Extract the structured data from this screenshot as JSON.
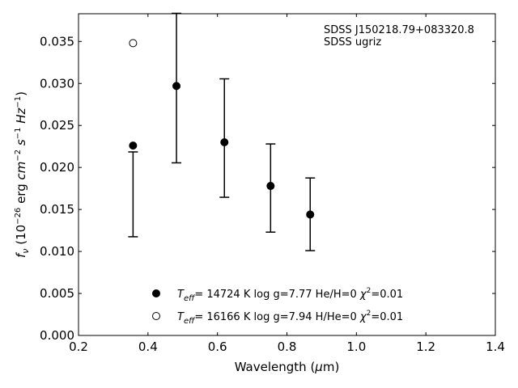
{
  "chart_data": {
    "type": "scatter",
    "xlabel": "Wavelength (μm)",
    "ylabel": "f_ν (10^-26 erg cm^-2 s^-1 Hz^-1)",
    "xlim": [
      0.2,
      1.4
    ],
    "ylim": [
      0.0,
      0.0383
    ],
    "xticks": [
      "0.2",
      "0.4",
      "0.6",
      "0.8",
      "1.0",
      "1.2",
      "1.4"
    ],
    "xtick_values": [
      0.2,
      0.4,
      0.6,
      0.8,
      1.0,
      1.2,
      1.4
    ],
    "yticks": [
      "0.000",
      "0.005",
      "0.010",
      "0.015",
      "0.020",
      "0.025",
      "0.030",
      "0.035"
    ],
    "ytick_values": [
      0.0,
      0.005,
      0.01,
      0.015,
      0.02,
      0.025,
      0.03,
      0.035
    ],
    "annotation": [
      "SDSS J150218.79+083320.8",
      "SDSS ugriz"
    ],
    "observed": {
      "name": "SDSS ugriz",
      "x": [
        0.3551,
        0.4686,
        0.6166,
        0.748,
        0.8932
      ],
      "x_plot": [
        0.357,
        0.482,
        0.62,
        0.753,
        0.867
      ],
      "y": [
        0.0168,
        0.0294,
        0.02475,
        0.01755,
        0.01445
      ],
      "yerr_low": [
        0.01175,
        0.02055,
        0.01645,
        0.0123,
        0.0101
      ],
      "yerr_high": [
        0.02185,
        0.03835,
        0.03055,
        0.0228,
        0.01875
      ]
    },
    "series": [
      {
        "name": "Teff= 14724 K  log g=7.77  He/H=0  χ²=0.01",
        "marker": "filled-circle",
        "x": [
          0.357,
          0.482,
          0.62,
          0.753,
          0.867
        ],
        "y": [
          0.0226,
          0.0297,
          0.023,
          0.0178,
          0.0144
        ]
      },
      {
        "name": "Teff= 16166 K  log g=7.94  H/He=0  χ²=0.01",
        "marker": "open-circle",
        "x": [
          0.357
        ],
        "y": [
          0.0348
        ]
      }
    ],
    "legend": [
      {
        "marker": "filled-circle",
        "teff": "14724 K",
        "logg": "log g=7.77",
        "comp": "He/H=0",
        "chi": "=0.01"
      },
      {
        "marker": "open-circle",
        "teff": "16166 K",
        "logg": "log g=7.94",
        "comp": "H/He=0",
        "chi": "=0.01"
      }
    ],
    "legend_position": "bottom-center",
    "grid": false
  }
}
